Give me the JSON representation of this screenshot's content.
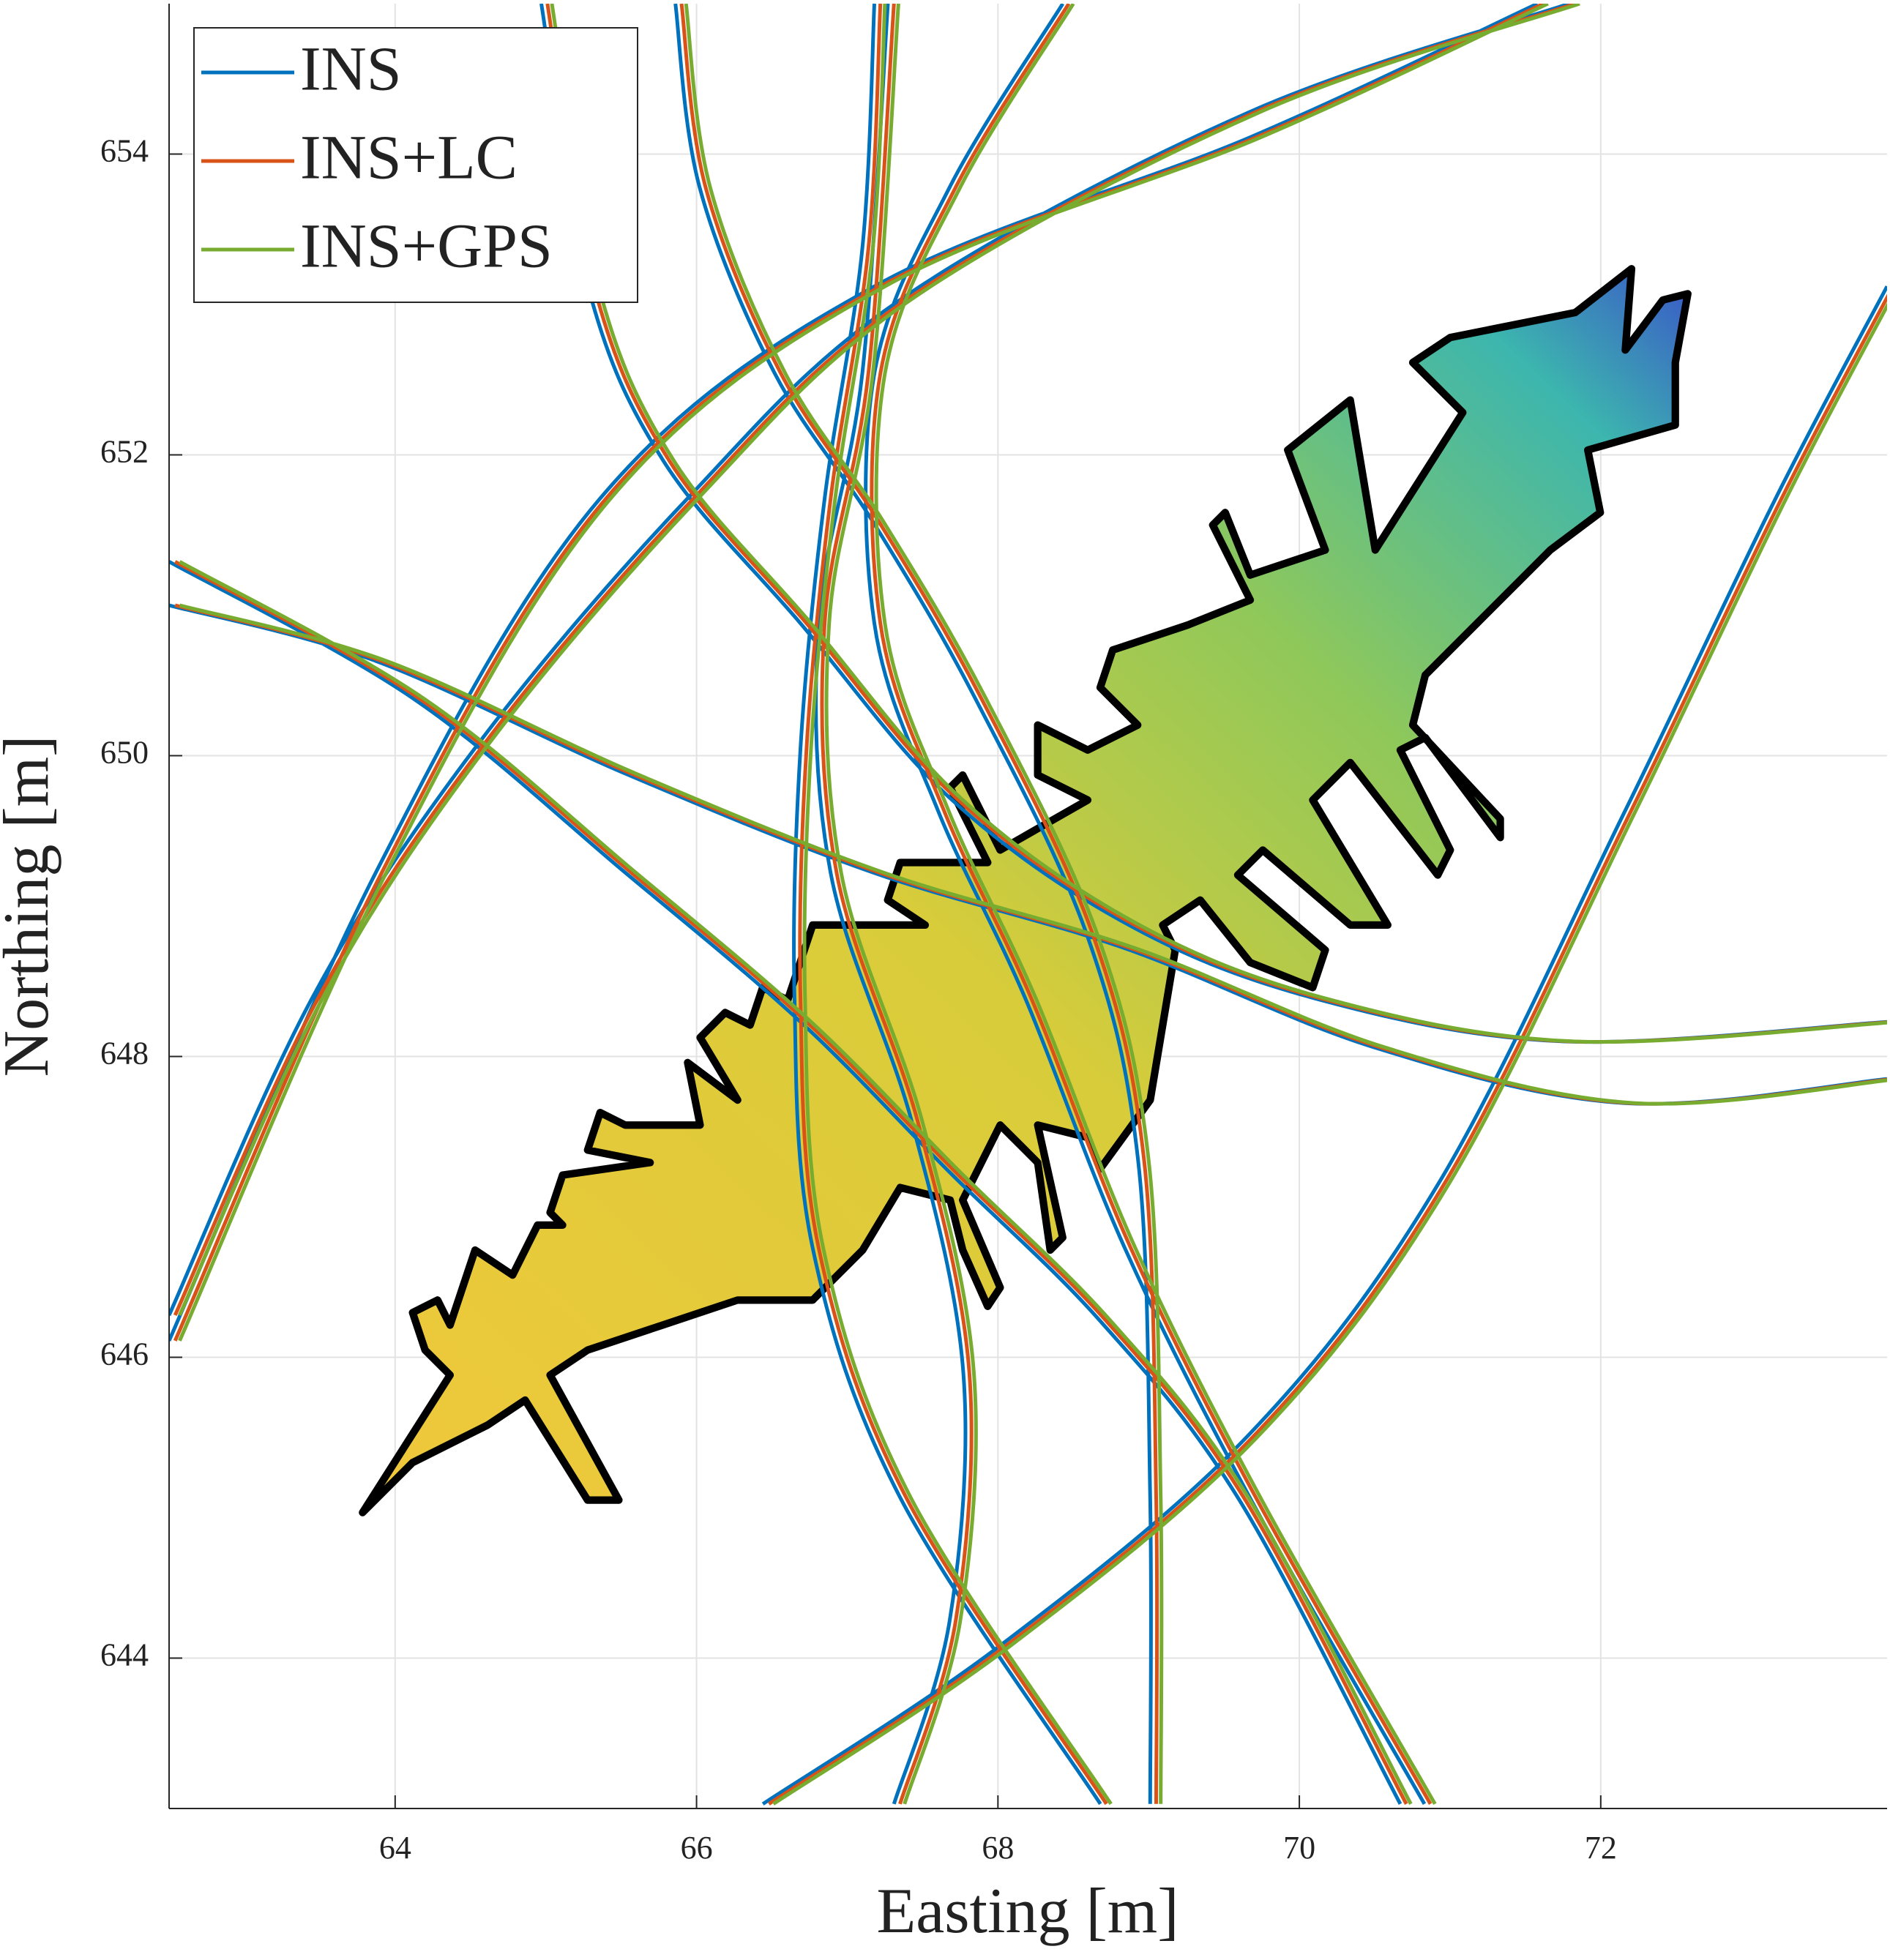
{
  "chart_data": {
    "type": "line",
    "xlabel": "Easting [m]",
    "ylabel": "Northing [m]",
    "xlim": [
      62.5,
      73.9
    ],
    "ylim": [
      643,
      655
    ],
    "xticks": [
      64,
      66,
      68,
      70,
      72
    ],
    "yticks": [
      644,
      646,
      648,
      650,
      652,
      654
    ],
    "grid": true,
    "legend": "upper left",
    "series": [
      {
        "name": "INS",
        "color": "#0072BD",
        "x": [
          64.97,
          65.28,
          65.78,
          66.69,
          67.68,
          68.84,
          70.09,
          71.75,
          73.9,
          null,
          62.5,
          63.87,
          65.53,
          67.18,
          68.84,
          70.5,
          72.16,
          73.9,
          null,
          62.5,
          64.12,
          65.53,
          66.69,
          67.68,
          68.68,
          69.59,
          70.67,
          null,
          62.5,
          63.45,
          64.53,
          65.94,
          67.35,
          69.67,
          71.79,
          null,
          65.86,
          66.02,
          66.52,
          67.18,
          67.85,
          68.59,
          68.93,
          69.01,
          69.01,
          null,
          67.18,
          67.1,
          66.85,
          66.69,
          66.65,
          66.77,
          67.35,
          68.68,
          null,
          67.27,
          67.1,
          66.81,
          66.89,
          67.43,
          67.77,
          67.68,
          67.31,
          null,
          66.44,
          68.01,
          69.67,
          70.92,
          72.16,
          73.16,
          73.9,
          null,
          68.43,
          67.68,
          67.18,
          67.18,
          67.6,
          68.18,
          68.84,
          69.67,
          70.83,
          null,
          62.5,
          63.87,
          65.36,
          67.18,
          69.67,
          71.58
        ],
        "values": [
          655.0,
          653.12,
          651.96,
          650.88,
          649.72,
          648.89,
          648.39,
          648.1,
          648.23,
          null,
          651.0,
          650.63,
          649.88,
          649.22,
          648.72,
          648.06,
          647.69,
          647.85,
          null,
          651.29,
          650.38,
          649.22,
          648.23,
          647.23,
          646.24,
          645.07,
          643.03,
          null,
          646.28,
          648.39,
          650.05,
          651.71,
          653.03,
          654.28,
          655.0,
          null,
          655.0,
          653.78,
          652.54,
          651.54,
          650.38,
          648.81,
          647.31,
          645.07,
          643.03,
          null,
          655.0,
          653.37,
          651.71,
          650.05,
          648.39,
          646.73,
          645.07,
          643.03,
          null,
          655.0,
          652.54,
          650.88,
          649.22,
          647.56,
          645.9,
          644.25,
          643.03,
          null,
          643.03,
          644.08,
          645.49,
          647.15,
          649.63,
          651.71,
          653.12,
          null,
          655.0,
          653.78,
          652.54,
          650.88,
          649.64,
          648.39,
          646.73,
          645.07,
          643.03,
          null,
          646.11,
          649.22,
          651.71,
          653.12,
          654.11,
          655.0
        ]
      },
      {
        "name": "INS+LC",
        "color": "#D95319",
        "x": [
          65.01,
          65.32,
          65.82,
          66.73,
          67.72,
          68.88,
          70.13,
          71.79,
          73.94,
          null,
          62.54,
          63.91,
          65.57,
          67.22,
          68.88,
          70.54,
          72.2,
          73.94,
          null,
          62.54,
          64.16,
          65.57,
          66.73,
          67.72,
          68.72,
          69.63,
          70.71,
          null,
          62.54,
          63.49,
          64.57,
          65.98,
          67.39,
          69.71,
          71.83,
          null,
          65.9,
          66.06,
          66.56,
          67.22,
          67.89,
          68.63,
          68.97,
          69.05,
          69.05,
          null,
          67.22,
          67.14,
          66.89,
          66.73,
          66.69,
          66.81,
          67.39,
          68.72,
          null,
          67.31,
          67.14,
          66.85,
          66.93,
          67.47,
          67.81,
          67.72,
          67.35,
          null,
          66.48,
          68.05,
          69.71,
          70.96,
          72.2,
          73.2,
          73.94,
          null,
          68.47,
          67.72,
          67.22,
          67.22,
          67.64,
          68.22,
          68.88,
          69.71,
          70.87,
          null,
          62.54,
          63.91,
          65.4,
          67.22,
          69.71,
          71.62
        ],
        "values": [
          655.0,
          653.12,
          651.96,
          650.88,
          649.72,
          648.89,
          648.39,
          648.1,
          648.23,
          null,
          651.0,
          650.63,
          649.88,
          649.22,
          648.72,
          648.06,
          647.69,
          647.85,
          null,
          651.29,
          650.38,
          649.22,
          648.23,
          647.23,
          646.24,
          645.07,
          643.03,
          null,
          646.28,
          648.39,
          650.05,
          651.71,
          653.03,
          654.28,
          655.0,
          null,
          655.0,
          653.78,
          652.54,
          651.54,
          650.38,
          648.81,
          647.31,
          645.07,
          643.03,
          null,
          655.0,
          653.37,
          651.71,
          650.05,
          648.39,
          646.73,
          645.07,
          643.03,
          null,
          655.0,
          652.54,
          650.88,
          649.22,
          647.56,
          645.9,
          644.25,
          643.03,
          null,
          643.03,
          644.08,
          645.49,
          647.15,
          649.63,
          651.71,
          653.12,
          null,
          655.0,
          653.78,
          652.54,
          650.88,
          649.64,
          648.39,
          646.73,
          645.07,
          643.03,
          null,
          646.11,
          649.22,
          651.71,
          653.12,
          654.11,
          655.0
        ]
      },
      {
        "name": "INS+GPS",
        "color": "#77AC30",
        "x": [
          65.04,
          65.35,
          65.85,
          66.76,
          67.75,
          68.91,
          70.16,
          71.82,
          73.97,
          null,
          62.57,
          63.94,
          65.6,
          67.25,
          68.91,
          70.57,
          72.23,
          73.97,
          null,
          62.57,
          64.19,
          65.6,
          66.76,
          67.75,
          68.75,
          69.66,
          70.74,
          null,
          62.57,
          63.52,
          64.6,
          66.01,
          67.42,
          69.74,
          71.86,
          null,
          65.93,
          66.09,
          66.59,
          67.25,
          67.92,
          68.66,
          69.0,
          69.08,
          69.08,
          null,
          67.25,
          67.17,
          66.92,
          66.76,
          66.72,
          66.84,
          67.42,
          68.75,
          null,
          67.34,
          67.17,
          66.88,
          66.96,
          67.5,
          67.84,
          67.75,
          67.38,
          null,
          66.51,
          68.08,
          69.74,
          70.99,
          72.23,
          73.23,
          73.97,
          null,
          68.5,
          67.75,
          67.25,
          67.25,
          67.67,
          68.25,
          68.91,
          69.74,
          70.9,
          null,
          62.57,
          63.94,
          65.43,
          67.25,
          69.74,
          71.65
        ],
        "values": [
          655.0,
          653.12,
          651.96,
          650.88,
          649.72,
          648.89,
          648.39,
          648.1,
          648.23,
          null,
          651.0,
          650.63,
          649.88,
          649.22,
          648.72,
          648.06,
          647.69,
          647.85,
          null,
          651.29,
          650.38,
          649.22,
          648.23,
          647.23,
          646.24,
          645.07,
          643.03,
          null,
          646.28,
          648.39,
          650.05,
          651.71,
          653.03,
          654.28,
          655.0,
          null,
          655.0,
          653.78,
          652.54,
          651.54,
          650.38,
          648.81,
          647.31,
          645.07,
          643.03,
          null,
          655.0,
          653.37,
          651.71,
          650.05,
          648.39,
          646.73,
          645.07,
          643.03,
          null,
          655.0,
          652.54,
          650.88,
          649.22,
          647.56,
          645.9,
          644.25,
          643.03,
          null,
          643.03,
          644.08,
          645.49,
          647.15,
          649.63,
          651.71,
          653.12,
          null,
          655.0,
          653.78,
          652.54,
          650.88,
          649.64,
          648.39,
          646.73,
          645.07,
          643.03,
          null,
          646.11,
          649.22,
          651.71,
          653.12,
          654.11,
          655.0
        ]
      }
    ]
  }
}
